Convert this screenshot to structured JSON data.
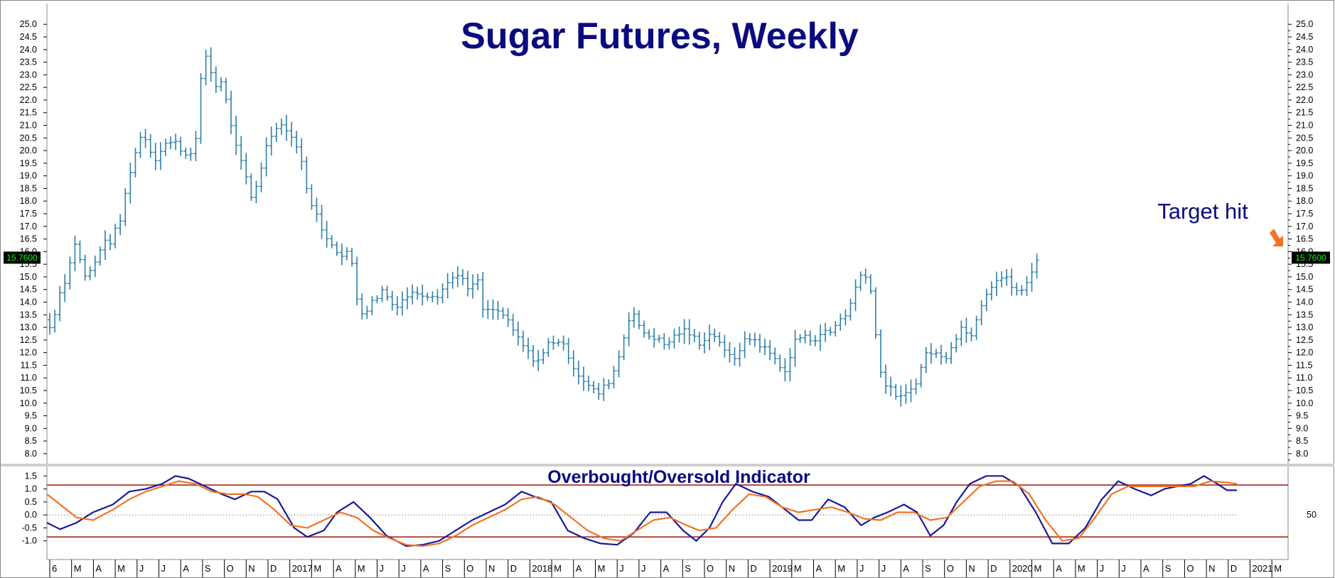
{
  "colors": {
    "bars": "#2f7fa6",
    "title": "#0a0a80",
    "osc_fast": "#1a1a96",
    "osc_slow": "#f27424",
    "threshold": "#a52a1a",
    "arrow": "#f27424",
    "frame": "#888888"
  },
  "chart_data": [
    {
      "type": "ohlc",
      "title": "Sugar Futures, Weekly",
      "annotation": "Target hit",
      "last_value_label": "15.7600",
      "last_value": 15.76,
      "ylim": [
        7.8,
        25.4
      ],
      "y_ticks": [
        "8.0",
        "8.5",
        "9.0",
        "9.5",
        "10.0",
        "10.5",
        "11.0",
        "11.5",
        "12.0",
        "12.5",
        "13.0",
        "13.5",
        "14.0",
        "14.5",
        "15.0",
        "15.5",
        "16.0",
        "16.5",
        "17.0",
        "17.5",
        "18.0",
        "18.5",
        "19.0",
        "19.5",
        "20.0",
        "20.5",
        "21.0",
        "21.5",
        "22.0",
        "22.5",
        "23.0",
        "23.5",
        "24.0",
        "24.5",
        "25.0"
      ],
      "x_labels": [
        "6",
        "M",
        "A",
        "M",
        "J",
        "J",
        "A",
        "S",
        "O",
        "N",
        "D",
        "2017",
        "M",
        "A",
        "M",
        "J",
        "J",
        "A",
        "S",
        "O",
        "N",
        "D",
        "2018",
        "M",
        "A",
        "M",
        "J",
        "J",
        "A",
        "S",
        "O",
        "N",
        "D",
        "2019",
        "M",
        "A",
        "M",
        "J",
        "J",
        "A",
        "S",
        "O",
        "N",
        "D",
        "2020",
        "M",
        "A",
        "M",
        "J",
        "J",
        "A",
        "S",
        "O",
        "N",
        "D",
        "2021",
        "M"
      ],
      "x_label_months": [
        1,
        2,
        3,
        4,
        5,
        6,
        7,
        8,
        9,
        10,
        11,
        12,
        13,
        14,
        15,
        16,
        17,
        18,
        19,
        20,
        21,
        22,
        23,
        24,
        25,
        26,
        27,
        28,
        29,
        30,
        31,
        32,
        33,
        34,
        35,
        36,
        37,
        38,
        39,
        40,
        41,
        42,
        43,
        44,
        45,
        46,
        47,
        48,
        49,
        50,
        51,
        52,
        53,
        54,
        55,
        56,
        57
      ],
      "path_points": [
        [
          1,
          13.3
        ],
        [
          1.3,
          12.9
        ],
        [
          1.6,
          14.2
        ],
        [
          2,
          15.0
        ],
        [
          2.4,
          16.4
        ],
        [
          2.8,
          15.0
        ],
        [
          3.2,
          15.3
        ],
        [
          3.6,
          16.3
        ],
        [
          4,
          16.4
        ],
        [
          4.5,
          17.3
        ],
        [
          4.8,
          18.8
        ],
        [
          5.1,
          19.8
        ],
        [
          5.5,
          20.8
        ],
        [
          6,
          19.6
        ],
        [
          6.5,
          20.3
        ],
        [
          7,
          20.3
        ],
        [
          7.5,
          19.8
        ],
        [
          7.9,
          20.2
        ],
        [
          8.2,
          23.2
        ],
        [
          8.4,
          23.8
        ],
        [
          8.8,
          22.5
        ],
        [
          9.1,
          22.8
        ],
        [
          9.4,
          21.6
        ],
        [
          9.8,
          20.0
        ],
        [
          10.2,
          19.0
        ],
        [
          10.5,
          18.0
        ],
        [
          10.9,
          19.3
        ],
        [
          11.2,
          20.3
        ],
        [
          11.6,
          21.0
        ],
        [
          12,
          21.0
        ],
        [
          12.4,
          20.4
        ],
        [
          12.8,
          19.6
        ],
        [
          13,
          18.4
        ],
        [
          13.4,
          17.6
        ],
        [
          13.7,
          16.8
        ],
        [
          14.2,
          16.3
        ],
        [
          14.6,
          15.8
        ],
        [
          15,
          16.0
        ],
        [
          15.3,
          14.2
        ],
        [
          15.6,
          13.5
        ],
        [
          16,
          14.0
        ],
        [
          16.5,
          14.5
        ],
        [
          17,
          13.8
        ],
        [
          17.5,
          14.2
        ],
        [
          18,
          14.4
        ],
        [
          18.5,
          14.3
        ],
        [
          19,
          14.3
        ],
        [
          19.5,
          14.8
        ],
        [
          20,
          15.2
        ],
        [
          20.4,
          14.4
        ],
        [
          20.8,
          15.0
        ],
        [
          21.1,
          13.6
        ],
        [
          21.6,
          13.7
        ],
        [
          22,
          13.5
        ],
        [
          22.5,
          12.8
        ],
        [
          22.9,
          12.3
        ],
        [
          23.3,
          11.8
        ],
        [
          23.7,
          11.7
        ],
        [
          24.1,
          12.4
        ],
        [
          24.5,
          12.5
        ],
        [
          24.9,
          12.1
        ],
        [
          25.3,
          11.3
        ],
        [
          25.7,
          10.9
        ],
        [
          26.1,
          10.5
        ],
        [
          26.4,
          10.4
        ],
        [
          26.8,
          10.8
        ],
        [
          27.2,
          11.5
        ],
        [
          27.5,
          12.5
        ],
        [
          27.9,
          13.8
        ],
        [
          28.2,
          13.0
        ],
        [
          28.6,
          12.7
        ],
        [
          29,
          12.6
        ],
        [
          29.4,
          12.3
        ],
        [
          29.8,
          12.6
        ],
        [
          30.2,
          12.9
        ],
        [
          30.6,
          12.7
        ],
        [
          31,
          12.4
        ],
        [
          31.4,
          12.7
        ],
        [
          31.8,
          12.7
        ],
        [
          32.2,
          11.9
        ],
        [
          32.6,
          11.8
        ],
        [
          33,
          12.4
        ],
        [
          33.4,
          12.6
        ],
        [
          33.8,
          12.3
        ],
        [
          34.2,
          12.0
        ],
        [
          34.6,
          11.6
        ],
        [
          35,
          11.2
        ],
        [
          35.4,
          12.6
        ],
        [
          35.8,
          12.6
        ],
        [
          36.2,
          12.5
        ],
        [
          36.6,
          12.8
        ],
        [
          37,
          12.8
        ],
        [
          37.4,
          13.3
        ],
        [
          37.8,
          13.6
        ],
        [
          38.2,
          14.7
        ],
        [
          38.5,
          15.3
        ],
        [
          38.8,
          14.8
        ],
        [
          39.1,
          12.5
        ],
        [
          39.4,
          10.8
        ],
        [
          39.8,
          10.5
        ],
        [
          40.2,
          10.2
        ],
        [
          40.6,
          10.4
        ],
        [
          41,
          11.0
        ],
        [
          41.4,
          12.0
        ],
        [
          41.8,
          12.0
        ],
        [
          42.2,
          11.7
        ],
        [
          42.6,
          12.4
        ],
        [
          43,
          13.0
        ],
        [
          43.4,
          12.6
        ],
        [
          43.8,
          13.7
        ],
        [
          44.2,
          14.5
        ],
        [
          44.6,
          14.9
        ],
        [
          45,
          15.0
        ],
        [
          45.4,
          14.5
        ],
        [
          45.8,
          14.4
        ],
        [
          46.2,
          15.1
        ],
        [
          46.4,
          15.76
        ]
      ],
      "month_ticks_per_label": 1
    },
    {
      "type": "line",
      "title": "Overbought/Oversold Indicator",
      "ylim": [
        -1.5,
        1.7
      ],
      "y_ticks": [
        "-1.0",
        "-0.5",
        "0.0",
        "0.5",
        "1.0",
        "1.5"
      ],
      "right_tick_label": "50",
      "thresholds": [
        1.15,
        -0.85
      ],
      "zero_line": 0.0,
      "series": [
        {
          "name": "",
          "color_key": "osc_fast",
          "points": [
            [
              0.8,
              -0.3
            ],
            [
              1.2,
              -0.55
            ],
            [
              1.7,
              -0.3
            ],
            [
              2.2,
              0.1
            ],
            [
              2.8,
              0.4
            ],
            [
              3.3,
              0.9
            ],
            [
              3.8,
              1.0
            ],
            [
              4.3,
              1.2
            ],
            [
              4.7,
              1.5
            ],
            [
              5.1,
              1.4
            ],
            [
              5.6,
              1.1
            ],
            [
              6.1,
              0.8
            ],
            [
              6.5,
              0.6
            ],
            [
              7,
              0.9
            ],
            [
              7.4,
              0.9
            ],
            [
              7.8,
              0.6
            ],
            [
              8.3,
              -0.5
            ],
            [
              8.7,
              -0.85
            ],
            [
              9.2,
              -0.6
            ],
            [
              9.6,
              0.1
            ],
            [
              10.1,
              0.5
            ],
            [
              10.6,
              -0.1
            ],
            [
              11.1,
              -0.8
            ],
            [
              11.7,
              -1.2
            ],
            [
              12.2,
              -1.15
            ],
            [
              12.7,
              -1.0
            ],
            [
              13.2,
              -0.6
            ],
            [
              13.7,
              -0.2
            ],
            [
              14.2,
              0.1
            ],
            [
              14.7,
              0.4
            ],
            [
              15.2,
              0.9
            ],
            [
              15.6,
              0.7
            ],
            [
              16.1,
              0.5
            ],
            [
              16.6,
              -0.6
            ],
            [
              17.1,
              -0.9
            ],
            [
              17.6,
              -1.1
            ],
            [
              18.1,
              -1.15
            ],
            [
              18.6,
              -0.7
            ],
            [
              19.1,
              0.1
            ],
            [
              19.6,
              0.1
            ],
            [
              20.1,
              -0.6
            ],
            [
              20.5,
              -1.0
            ],
            [
              20.9,
              -0.5
            ],
            [
              21.3,
              0.5
            ],
            [
              21.7,
              1.2
            ],
            [
              22.2,
              0.9
            ],
            [
              22.7,
              0.7
            ],
            [
              23.2,
              0.2
            ],
            [
              23.6,
              -0.2
            ],
            [
              24,
              -0.2
            ],
            [
              24.5,
              0.6
            ],
            [
              25,
              0.3
            ],
            [
              25.5,
              -0.4
            ],
            [
              25.9,
              -0.1
            ],
            [
              26.3,
              0.1
            ],
            [
              26.8,
              0.4
            ],
            [
              27.2,
              0.1
            ],
            [
              27.6,
              -0.8
            ],
            [
              28,
              -0.4
            ],
            [
              28.4,
              0.5
            ],
            [
              28.8,
              1.2
            ],
            [
              29.3,
              1.5
            ],
            [
              29.8,
              1.5
            ],
            [
              30.3,
              1.1
            ],
            [
              30.8,
              0.1
            ],
            [
              31.3,
              -1.1
            ],
            [
              31.8,
              -1.1
            ],
            [
              32.3,
              -0.5
            ],
            [
              32.8,
              0.6
            ],
            [
              33.3,
              1.3
            ],
            [
              33.8,
              1.0
            ],
            [
              34.3,
              0.75
            ],
            [
              34.7,
              1.0
            ],
            [
              35.1,
              1.1
            ],
            [
              35.5,
              1.2
            ],
            [
              35.9,
              1.5
            ],
            [
              36.3,
              1.2
            ],
            [
              36.6,
              0.95
            ],
            [
              36.9,
              0.95
            ]
          ]
        },
        {
          "name": "",
          "color_key": "osc_slow",
          "points": [
            [
              0.8,
              0.8
            ],
            [
              1.2,
              0.4
            ],
            [
              1.7,
              -0.1
            ],
            [
              2.2,
              -0.2
            ],
            [
              2.8,
              0.2
            ],
            [
              3.3,
              0.6
            ],
            [
              3.8,
              0.9
            ],
            [
              4.3,
              1.1
            ],
            [
              4.8,
              1.3
            ],
            [
              5.3,
              1.2
            ],
            [
              5.8,
              0.9
            ],
            [
              6.3,
              0.8
            ],
            [
              6.8,
              0.8
            ],
            [
              7.2,
              0.7
            ],
            [
              7.7,
              0.2
            ],
            [
              8.2,
              -0.4
            ],
            [
              8.7,
              -0.5
            ],
            [
              9.2,
              -0.2
            ],
            [
              9.7,
              0.1
            ],
            [
              10.2,
              -0.1
            ],
            [
              10.7,
              -0.6
            ],
            [
              11.2,
              -0.9
            ],
            [
              11.7,
              -1.15
            ],
            [
              12.2,
              -1.2
            ],
            [
              12.7,
              -1.1
            ],
            [
              13.2,
              -0.8
            ],
            [
              13.7,
              -0.4
            ],
            [
              14.2,
              -0.1
            ],
            [
              14.7,
              0.2
            ],
            [
              15.2,
              0.6
            ],
            [
              15.7,
              0.7
            ],
            [
              16.2,
              0.4
            ],
            [
              16.7,
              -0.1
            ],
            [
              17.2,
              -0.6
            ],
            [
              17.7,
              -0.9
            ],
            [
              18.2,
              -1.0
            ],
            [
              18.7,
              -0.6
            ],
            [
              19.2,
              -0.2
            ],
            [
              19.7,
              -0.1
            ],
            [
              20.2,
              -0.4
            ],
            [
              20.6,
              -0.6
            ],
            [
              21.1,
              -0.5
            ],
            [
              21.6,
              0.2
            ],
            [
              22.1,
              0.8
            ],
            [
              22.6,
              0.7
            ],
            [
              23.1,
              0.3
            ],
            [
              23.6,
              0.1
            ],
            [
              24.1,
              0.2
            ],
            [
              24.6,
              0.3
            ],
            [
              25.1,
              0.1
            ],
            [
              25.6,
              -0.15
            ],
            [
              26.1,
              -0.2
            ],
            [
              26.6,
              0.1
            ],
            [
              27.1,
              0.1
            ],
            [
              27.6,
              -0.2
            ],
            [
              28.1,
              -0.1
            ],
            [
              28.6,
              0.5
            ],
            [
              29.1,
              1.1
            ],
            [
              29.6,
              1.3
            ],
            [
              30.1,
              1.3
            ],
            [
              30.6,
              0.8
            ],
            [
              31.1,
              -0.2
            ],
            [
              31.6,
              -1.0
            ],
            [
              32.1,
              -0.9
            ],
            [
              32.6,
              -0.1
            ],
            [
              33.1,
              0.8
            ],
            [
              33.6,
              1.1
            ],
            [
              34.1,
              1.1
            ],
            [
              34.6,
              1.1
            ],
            [
              35.1,
              1.1
            ],
            [
              35.6,
              1.1
            ],
            [
              36.1,
              1.3
            ],
            [
              36.6,
              1.25
            ],
            [
              36.9,
              1.2
            ]
          ]
        }
      ]
    }
  ]
}
